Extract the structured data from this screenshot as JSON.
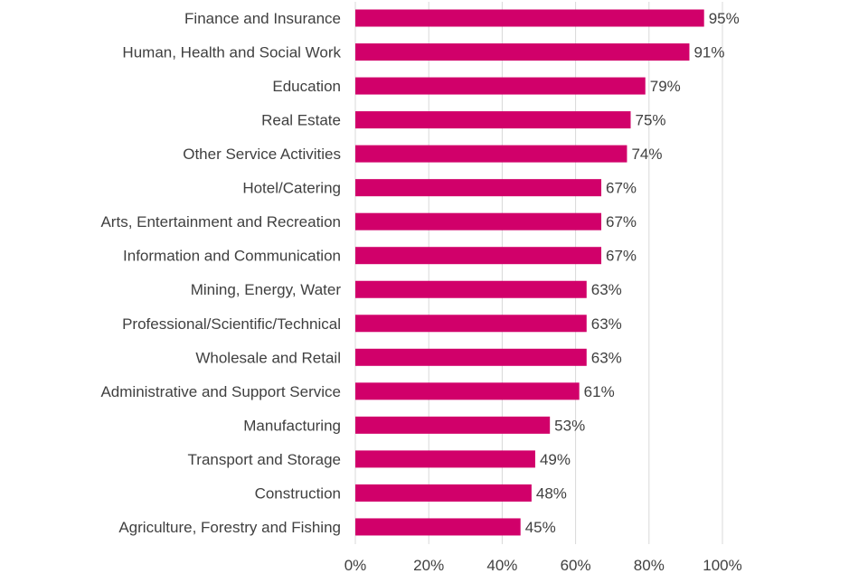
{
  "chart_data": {
    "type": "bar",
    "orientation": "horizontal",
    "categories": [
      "Finance and Insurance",
      "Human, Health and Social Work",
      "Education",
      "Real Estate",
      "Other Service Activities",
      "Hotel/Catering",
      "Arts, Entertainment and Recreation",
      "Information and Communication",
      "Mining, Energy, Water",
      "Professional/Scientific/Technical",
      "Wholesale and Retail",
      "Administrative and Support Service",
      "Manufacturing",
      "Transport and Storage",
      "Construction",
      "Agriculture, Forestry and Fishing"
    ],
    "values": [
      95,
      91,
      79,
      75,
      74,
      67,
      67,
      67,
      63,
      63,
      63,
      61,
      53,
      49,
      48,
      45
    ],
    "data_labels": [
      "95%",
      "91%",
      "79%",
      "75%",
      "74%",
      "67%",
      "67%",
      "67%",
      "63%",
      "63%",
      "63%",
      "61%",
      "53%",
      "49%",
      "48%",
      "45%"
    ],
    "xlim": [
      0,
      100
    ],
    "xticks": [
      0,
      20,
      40,
      60,
      80,
      100
    ],
    "xtick_labels": [
      "0%",
      "20%",
      "40%",
      "60%",
      "80%",
      "100%"
    ],
    "grid": "vertical",
    "bar_color": "#D1006A",
    "text_color": "#404040",
    "grid_color": "#D9D9D9"
  }
}
